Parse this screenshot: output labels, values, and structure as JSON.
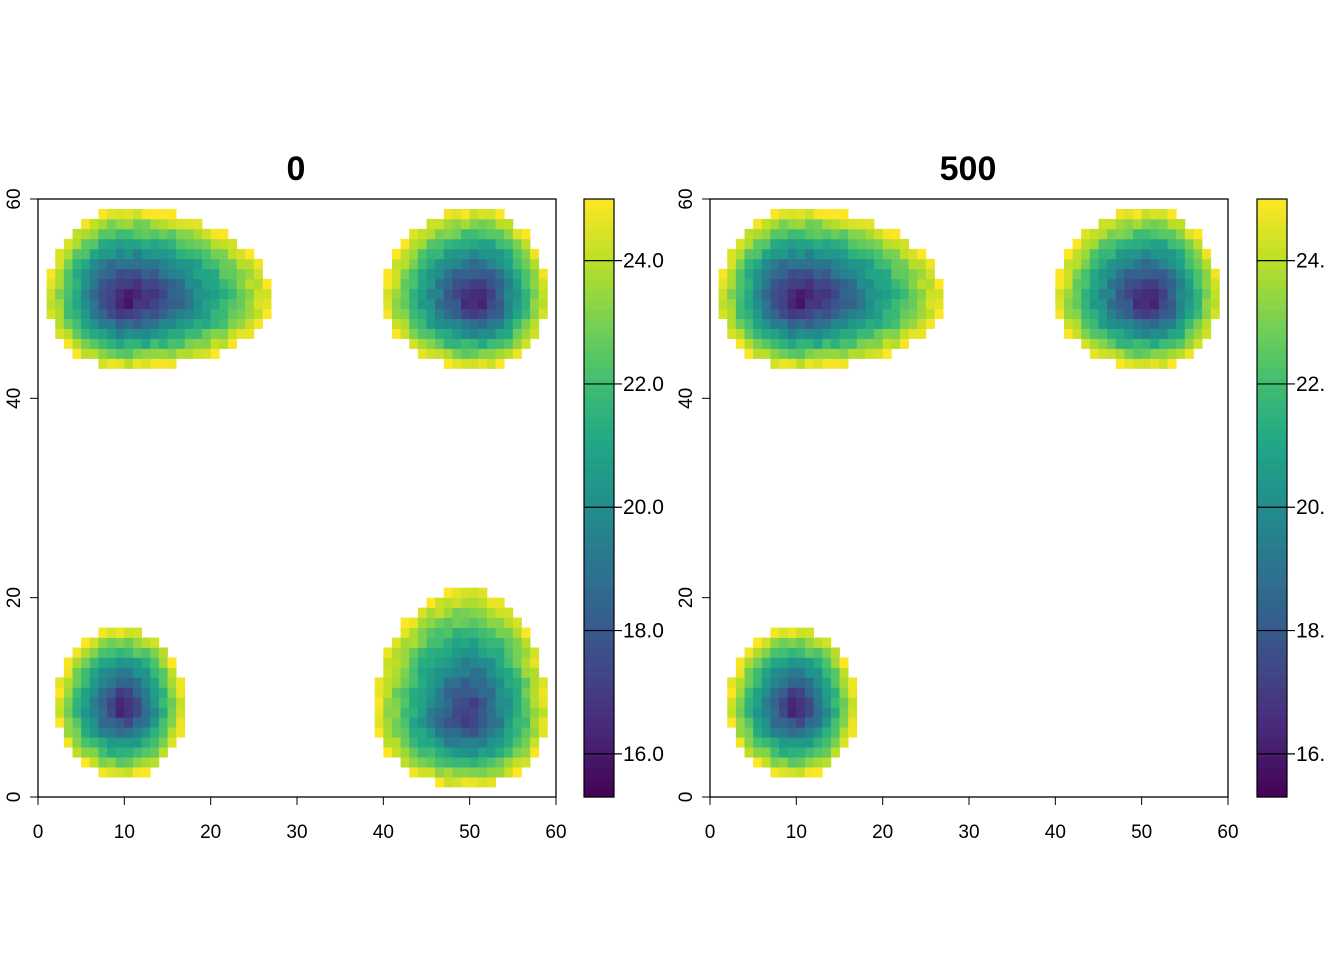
{
  "chart_data": [
    {
      "type": "heatmap",
      "title": "0",
      "xlim": [
        0,
        60
      ],
      "ylim": [
        0,
        60
      ],
      "x_ticks": [
        "0",
        "10",
        "20",
        "30",
        "40",
        "50",
        "60"
      ],
      "y_ticks": [
        "0",
        "20",
        "40",
        "60"
      ],
      "cell_size": 1,
      "colorscale": "viridis",
      "color_range": [
        15.3,
        25.0
      ],
      "legend_ticks": [
        "16.0",
        "18.0",
        "20.0",
        "22.0",
        "24.0"
      ],
      "legend_tick_values": [
        16,
        18,
        20,
        22,
        24
      ],
      "legend_placement": "right",
      "clusters": [
        {
          "cx": 10,
          "cy": 50,
          "min_value": 15.6,
          "max_value": 25.0,
          "x_extent": [
            1,
            27
          ],
          "y_extent": [
            43,
            59
          ]
        },
        {
          "cx": 51,
          "cy": 50,
          "min_value": 15.8,
          "max_value": 25.0,
          "x_extent": [
            40,
            59
          ],
          "y_extent": [
            43,
            59
          ]
        },
        {
          "cx": 10,
          "cy": 9,
          "min_value": 16.0,
          "max_value": 25.0,
          "x_extent": [
            2,
            17
          ],
          "y_extent": [
            2,
            17
          ]
        },
        {
          "cx": 50,
          "cy": 8,
          "min_value": 16.6,
          "max_value": 25.0,
          "x_extent": [
            39,
            59
          ],
          "y_extent": [
            1,
            21
          ]
        }
      ]
    },
    {
      "type": "heatmap",
      "title": "500",
      "xlim": [
        0,
        60
      ],
      "ylim": [
        0,
        60
      ],
      "x_ticks": [
        "0",
        "10",
        "20",
        "30",
        "40",
        "50",
        "60"
      ],
      "y_ticks": [
        "0",
        "20",
        "40",
        "60"
      ],
      "cell_size": 1,
      "colorscale": "viridis",
      "color_range": [
        15.3,
        25.0
      ],
      "legend_ticks": [
        "16.",
        "18.",
        "20.",
        "22.",
        "24."
      ],
      "legend_tick_values": [
        16,
        18,
        20,
        22,
        24
      ],
      "legend_placement": "right",
      "clusters": [
        {
          "cx": 10,
          "cy": 50,
          "min_value": 15.6,
          "max_value": 25.0,
          "x_extent": [
            1,
            27
          ],
          "y_extent": [
            43,
            59
          ]
        },
        {
          "cx": 51,
          "cy": 50,
          "min_value": 15.8,
          "max_value": 25.0,
          "x_extent": [
            40,
            59
          ],
          "y_extent": [
            43,
            59
          ]
        },
        {
          "cx": 10,
          "cy": 9,
          "min_value": 16.0,
          "max_value": 25.0,
          "x_extent": [
            2,
            17
          ],
          "y_extent": [
            2,
            17
          ]
        }
      ]
    }
  ]
}
